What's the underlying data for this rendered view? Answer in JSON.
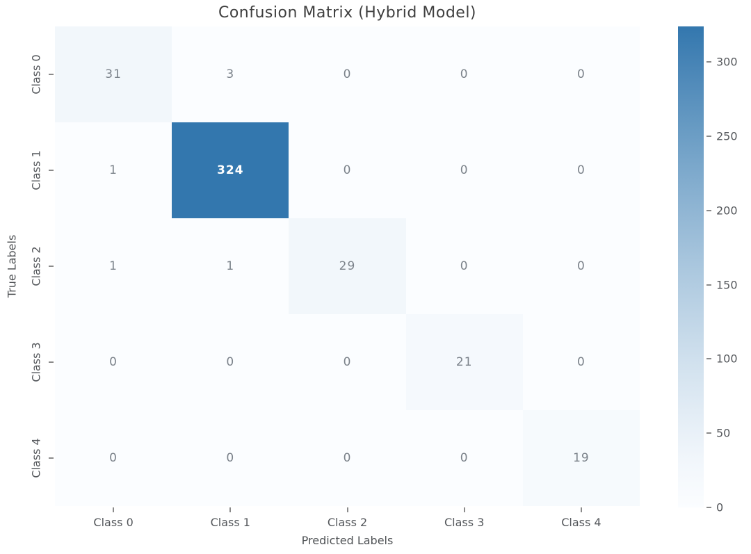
{
  "chart_data": {
    "type": "heatmap",
    "title": "Confusion Matrix (Hybrid Model)",
    "xlabel": "Predicted Labels",
    "ylabel": "True Labels",
    "x_categories": [
      "Class 0",
      "Class 1",
      "Class 2",
      "Class 3",
      "Class 4"
    ],
    "y_categories": [
      "Class 0",
      "Class 1",
      "Class 2",
      "Class 3",
      "Class 4"
    ],
    "matrix": [
      [
        31,
        3,
        0,
        0,
        0
      ],
      [
        1,
        324,
        0,
        0,
        0
      ],
      [
        1,
        1,
        29,
        0,
        0
      ],
      [
        0,
        0,
        0,
        21,
        0
      ],
      [
        0,
        0,
        0,
        0,
        19
      ]
    ],
    "vmin": 0,
    "vmax": 324,
    "colorbar_ticks": [
      0,
      50,
      100,
      150,
      200,
      250,
      300
    ],
    "colormap": {
      "name": "Blues",
      "low": "#fbfdff",
      "high": "#3377ae"
    },
    "grid": false,
    "legend_position": "right-colorbar",
    "colors": {
      "title_text": "#3f3f3f",
      "axis_label_text": "#4e5154",
      "tick_label_text": "#54575b",
      "annotation_dark": "#7b828a",
      "annotation_light": "#ffffff",
      "background": "#ffffff"
    }
  }
}
